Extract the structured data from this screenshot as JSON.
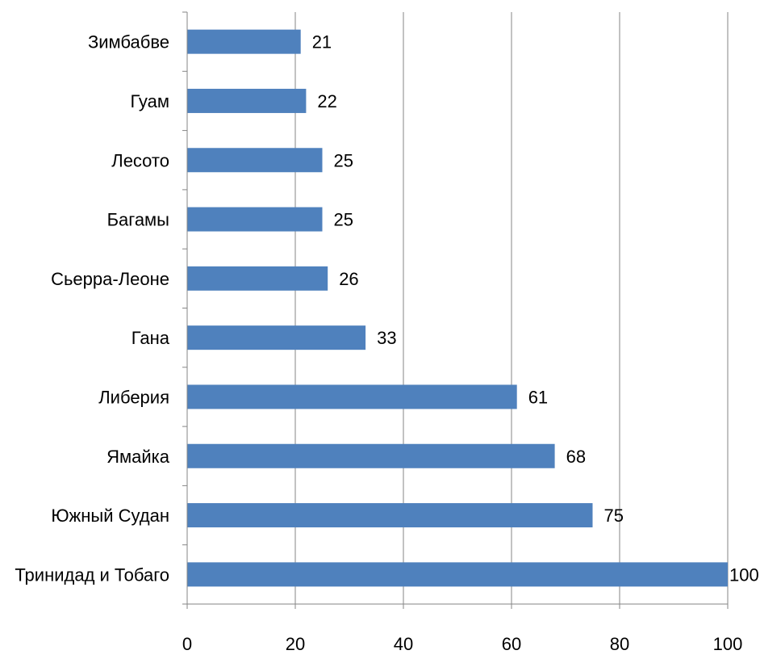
{
  "chart_data": {
    "type": "bar",
    "orientation": "horizontal",
    "categories": [
      "Зимбабве",
      "Гуам",
      "Лесото",
      "Багамы",
      "Сьерра-Леоне",
      "Гана",
      "Либерия",
      "Ямайка",
      "Южный Судан",
      "Тринидад и Тобаго"
    ],
    "values": [
      21,
      22,
      25,
      25,
      26,
      33,
      61,
      68,
      75,
      100
    ],
    "xlim": [
      0,
      100
    ],
    "xticks": [
      0,
      20,
      40,
      60,
      80,
      100
    ],
    "grid": "vertical",
    "legend": "none",
    "data_labels": true,
    "title": "",
    "xlabel": "",
    "ylabel": "",
    "colors": {
      "bar": "#4f81bd",
      "grid": "#868686",
      "axis": "#868686"
    }
  }
}
